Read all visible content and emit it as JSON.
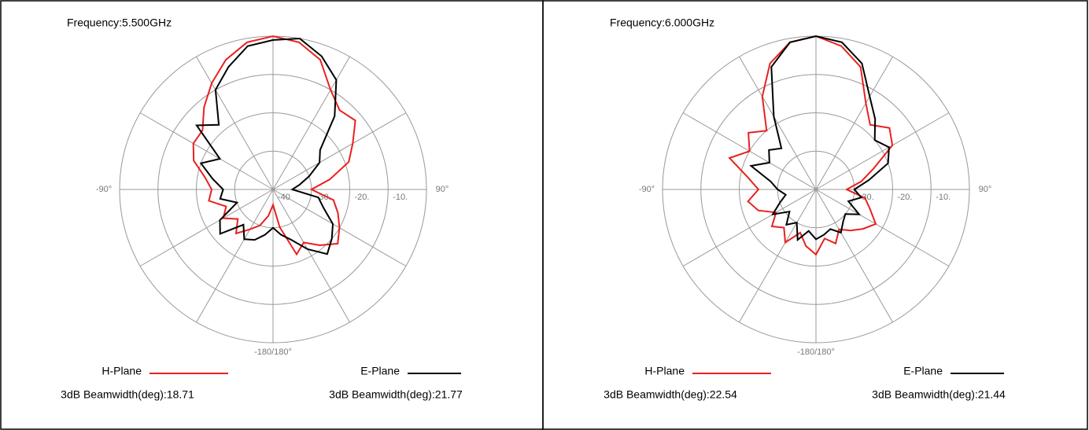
{
  "chart_data": [
    {
      "type": "polar",
      "title": "Frequency:5.500GHz",
      "rlim": [
        -40,
        0
      ],
      "rticks": [
        {
          "value": -40,
          "label": "-40"
        },
        {
          "value": -30,
          "label": "-30."
        },
        {
          "value": -20,
          "label": "-20."
        },
        {
          "value": -10,
          "label": "-10."
        }
      ],
      "theta_grid": [
        -180,
        -150,
        -120,
        -90,
        -60,
        -30,
        0,
        30,
        60,
        90,
        120,
        150
      ],
      "theta_ticks": [
        {
          "value": -90,
          "label": "-90°"
        },
        {
          "value": 90,
          "label": "90°"
        },
        {
          "value": 180,
          "label": "-180/180°"
        }
      ],
      "theta": [
        -180,
        -170,
        -160,
        -150,
        -140,
        -130,
        -120,
        -110,
        -100,
        -90,
        -80,
        -70,
        -60,
        -50,
        -40,
        -30,
        -20,
        -10,
        0,
        10,
        20,
        30,
        40,
        50,
        60,
        70,
        80,
        90,
        100,
        110,
        120,
        130,
        140,
        150,
        160,
        170
      ],
      "series": [
        {
          "name": "H-Plane",
          "color": "#e8211f",
          "annotation": "3dB Beamwidth(deg):18.71",
          "values": [
            -36,
            -33,
            -30,
            -28,
            -25,
            -28,
            -25,
            -27,
            -23,
            -24,
            -22,
            -18,
            -16,
            -16,
            -12,
            -8,
            -4,
            -1,
            0,
            -1,
            -4,
            -10,
            -13,
            -12,
            -16,
            -19,
            -25,
            -30,
            -24,
            -22,
            -20,
            -18,
            -21,
            -24,
            -22,
            -30
          ]
        },
        {
          "name": "E-Plane",
          "color": "#000000",
          "annotation": "3dB Beamwidth(deg):21.77",
          "values": [
            -30,
            -28,
            -26,
            -25,
            -28,
            -22,
            -24,
            -30,
            -26,
            -27,
            -24,
            -20,
            -24,
            -14,
            -18,
            -10,
            -6,
            -2,
            -1,
            0,
            -3,
            -7,
            -15,
            -24,
            -26,
            -30,
            -33,
            -35,
            -28,
            -26,
            -22,
            -20,
            -18,
            -22,
            -26,
            -28
          ]
        }
      ]
    },
    {
      "type": "polar",
      "title": "Frequency:6.000GHz",
      "rlim": [
        -40,
        0
      ],
      "rticks": [
        {
          "value": -30,
          "label": "-30."
        },
        {
          "value": -20,
          "label": "-20."
        },
        {
          "value": -10,
          "label": "-10."
        }
      ],
      "theta_grid": [
        -180,
        -150,
        -120,
        -90,
        -60,
        -30,
        0,
        30,
        60,
        90,
        120,
        150
      ],
      "theta_ticks": [
        {
          "value": -90,
          "label": "-90°"
        },
        {
          "value": 90,
          "label": "90°"
        },
        {
          "value": 180,
          "label": "-180/180°"
        }
      ],
      "theta": [
        -180,
        -170,
        -160,
        -150,
        -140,
        -130,
        -120,
        -110,
        -100,
        -90,
        -80,
        -70,
        -60,
        -50,
        -40,
        -30,
        -20,
        -10,
        0,
        10,
        20,
        30,
        40,
        50,
        60,
        70,
        80,
        90,
        100,
        110,
        120,
        130,
        140,
        150,
        160,
        170
      ],
      "series": [
        {
          "name": "H-Plane",
          "color": "#e8211f",
          "annotation": "3dB Beamwidth(deg):22.54",
          "values": [
            -23,
            -25,
            -28,
            -24,
            -27,
            -25,
            -28,
            -24,
            -22,
            -25,
            -22,
            -16,
            -20,
            -17,
            -20,
            -12,
            -5,
            -1,
            0,
            -2,
            -6,
            -14,
            -18,
            -15,
            -17,
            -24,
            -28,
            -32,
            -27,
            -25,
            -22,
            -24,
            -26,
            -28,
            -25,
            -27
          ]
        },
        {
          "name": "E-Plane",
          "color": "#000000",
          "annotation": "3dB Beamwidth(deg):21.44",
          "values": [
            -27,
            -29,
            -26,
            -30,
            -28,
            -31,
            -27,
            -30,
            -32,
            -30,
            -28,
            -22,
            -26,
            -24,
            -26,
            -18,
            -6,
            -1,
            0,
            -1,
            -5,
            -12,
            -16,
            -20,
            -18,
            -20,
            -26,
            -30,
            -28,
            -31,
            -27,
            -30,
            -29,
            -27,
            -29,
            -28
          ]
        }
      ]
    }
  ]
}
